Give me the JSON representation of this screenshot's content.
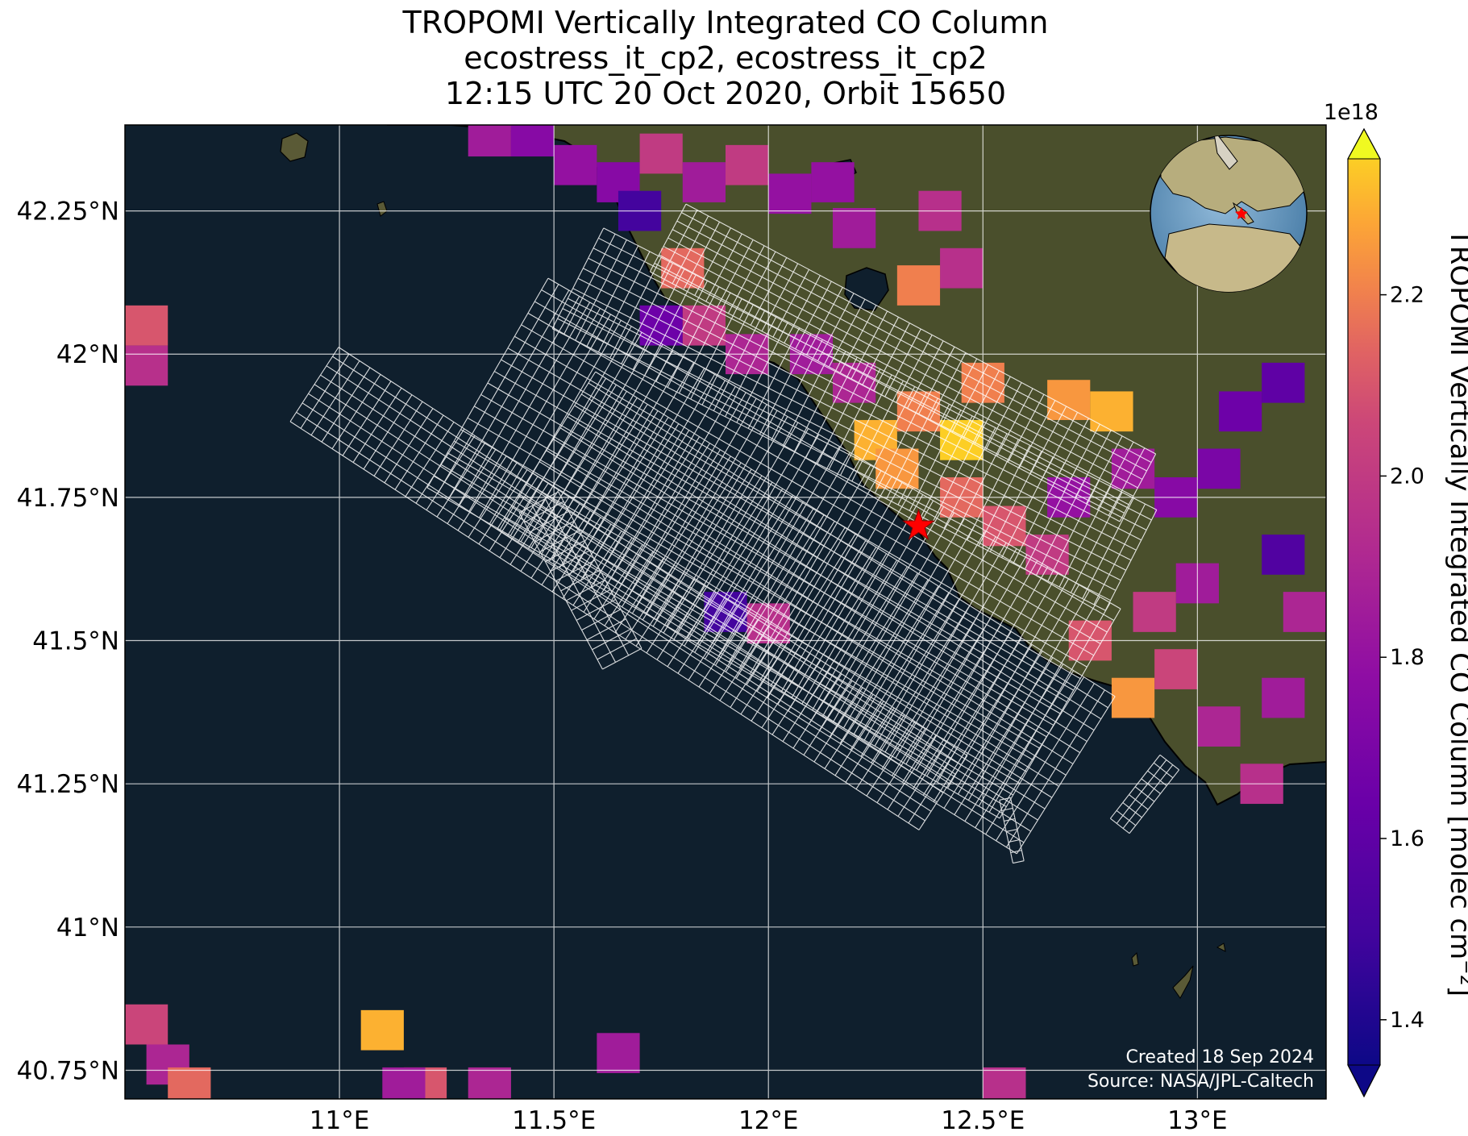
{
  "title": {
    "line1": "TROPOMI Vertically Integrated CO Column",
    "line2": "ecostress_it_cp2, ecostress_it_cp2",
    "line3": "12:15 UTC 20 Oct 2020, Orbit 15650"
  },
  "map": {
    "lon_range": [
      10.5,
      13.3
    ],
    "lat_range": [
      40.7,
      42.4
    ],
    "lon_ticks": [
      "11°E",
      "11.5°E",
      "12°E",
      "12.5°E",
      "13°E"
    ],
    "lat_ticks": [
      "42.25°N",
      "42°N",
      "41.75°N",
      "41.5°N",
      "41.25°N",
      "41°N",
      "40.75°N"
    ],
    "target_marker": {
      "lon": 12.35,
      "lat": 41.7,
      "symbol": "star-icon",
      "color": "#ff0000"
    },
    "credits": {
      "created": "Created 18 Sep 2024",
      "source": "Source: NASA/JPL-Caltech"
    },
    "colors": {
      "sea": "#0f1f2d",
      "land": "#4a4f2c",
      "grid": "#ffffff",
      "footprint": "#ffffff"
    }
  },
  "colorbar": {
    "label": "TROPOMI Vertically Integrated CO Column [molec cm",
    "label_sup": "−2",
    "label_end": "]",
    "scale_label": "1e18",
    "ticks": [
      "1.4",
      "1.6",
      "1.8",
      "2.0",
      "2.2"
    ],
    "range": [
      1.35,
      2.35
    ],
    "extend": "both",
    "colormap": "plasma"
  },
  "chart_data": {
    "type": "heatmap",
    "title": "TROPOMI Vertically Integrated CO Column",
    "xlabel": "",
    "ylabel": "",
    "xlim": [
      10.5,
      13.3
    ],
    "ylim": [
      40.7,
      42.4
    ],
    "value_units": "1e18 molec cm−2",
    "cells": [
      {
        "lon": 11.35,
        "lat": 42.38,
        "v": 1.85
      },
      {
        "lon": 11.45,
        "lat": 42.38,
        "v": 1.75
      },
      {
        "lon": 11.55,
        "lat": 42.33,
        "v": 1.8
      },
      {
        "lon": 11.65,
        "lat": 42.3,
        "v": 1.75
      },
      {
        "lon": 11.7,
        "lat": 42.25,
        "v": 1.5
      },
      {
        "lon": 11.75,
        "lat": 42.35,
        "v": 2.0
      },
      {
        "lon": 11.85,
        "lat": 42.3,
        "v": 1.85
      },
      {
        "lon": 11.95,
        "lat": 42.33,
        "v": 2.0
      },
      {
        "lon": 12.05,
        "lat": 42.28,
        "v": 1.8
      },
      {
        "lon": 12.15,
        "lat": 42.3,
        "v": 1.8
      },
      {
        "lon": 12.2,
        "lat": 42.22,
        "v": 1.85
      },
      {
        "lon": 12.4,
        "lat": 42.25,
        "v": 1.95
      },
      {
        "lon": 12.45,
        "lat": 42.15,
        "v": 1.95
      },
      {
        "lon": 12.35,
        "lat": 42.12,
        "v": 2.2
      },
      {
        "lon": 11.8,
        "lat": 42.15,
        "v": 2.15
      },
      {
        "lon": 11.75,
        "lat": 42.05,
        "v": 1.65
      },
      {
        "lon": 11.85,
        "lat": 42.05,
        "v": 2.0
      },
      {
        "lon": 11.95,
        "lat": 42.0,
        "v": 1.9
      },
      {
        "lon": 12.1,
        "lat": 42.0,
        "v": 1.85
      },
      {
        "lon": 12.2,
        "lat": 41.95,
        "v": 1.9
      },
      {
        "lon": 12.25,
        "lat": 41.85,
        "v": 2.3
      },
      {
        "lon": 12.35,
        "lat": 41.9,
        "v": 2.2
      },
      {
        "lon": 12.45,
        "lat": 41.85,
        "v": 2.35
      },
      {
        "lon": 12.5,
        "lat": 41.95,
        "v": 2.2
      },
      {
        "lon": 12.3,
        "lat": 41.8,
        "v": 2.25
      },
      {
        "lon": 12.45,
        "lat": 41.75,
        "v": 2.15
      },
      {
        "lon": 12.55,
        "lat": 41.7,
        "v": 2.1
      },
      {
        "lon": 12.7,
        "lat": 41.75,
        "v": 1.8
      },
      {
        "lon": 12.65,
        "lat": 41.65,
        "v": 2.0
      },
      {
        "lon": 12.7,
        "lat": 41.92,
        "v": 2.25
      },
      {
        "lon": 12.8,
        "lat": 41.9,
        "v": 2.3
      },
      {
        "lon": 12.85,
        "lat": 41.8,
        "v": 1.85
      },
      {
        "lon": 12.95,
        "lat": 41.75,
        "v": 1.75
      },
      {
        "lon": 13.05,
        "lat": 41.8,
        "v": 1.7
      },
      {
        "lon": 13.1,
        "lat": 41.9,
        "v": 1.65
      },
      {
        "lon": 13.2,
        "lat": 41.95,
        "v": 1.6
      },
      {
        "lon": 13.2,
        "lat": 41.65,
        "v": 1.55
      },
      {
        "lon": 13.25,
        "lat": 41.55,
        "v": 1.9
      },
      {
        "lon": 13.0,
        "lat": 41.6,
        "v": 1.85
      },
      {
        "lon": 12.9,
        "lat": 41.55,
        "v": 2.0
      },
      {
        "lon": 12.75,
        "lat": 41.5,
        "v": 2.1
      },
      {
        "lon": 12.85,
        "lat": 41.4,
        "v": 2.25
      },
      {
        "lon": 12.95,
        "lat": 41.45,
        "v": 2.05
      },
      {
        "lon": 13.05,
        "lat": 41.35,
        "v": 1.9
      },
      {
        "lon": 13.15,
        "lat": 41.25,
        "v": 1.95
      },
      {
        "lon": 13.2,
        "lat": 41.4,
        "v": 1.85
      },
      {
        "lon": 11.9,
        "lat": 41.55,
        "v": 1.5
      },
      {
        "lon": 12.0,
        "lat": 41.53,
        "v": 1.95
      },
      {
        "lon": 10.55,
        "lat": 42.05,
        "v": 2.1
      },
      {
        "lon": 10.55,
        "lat": 41.98,
        "v": 1.95
      },
      {
        "lon": 10.55,
        "lat": 40.83,
        "v": 2.05
      },
      {
        "lon": 10.6,
        "lat": 40.76,
        "v": 1.9
      },
      {
        "lon": 10.65,
        "lat": 40.72,
        "v": 2.15
      },
      {
        "lon": 11.1,
        "lat": 40.82,
        "v": 2.3
      },
      {
        "lon": 11.2,
        "lat": 40.72,
        "v": 2.1
      },
      {
        "lon": 11.15,
        "lat": 40.72,
        "v": 1.85
      },
      {
        "lon": 11.35,
        "lat": 40.72,
        "v": 1.9
      },
      {
        "lon": 11.65,
        "lat": 40.78,
        "v": 1.85
      },
      {
        "lon": 12.55,
        "lat": 40.72,
        "v": 1.95
      }
    ]
  }
}
